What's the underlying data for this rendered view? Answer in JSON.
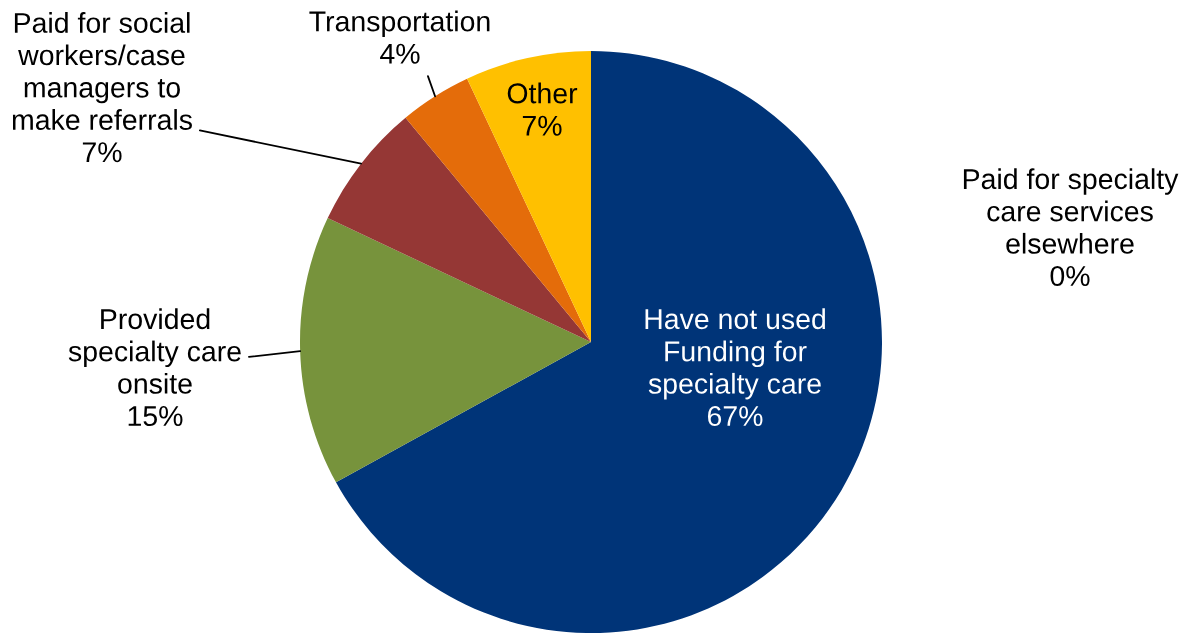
{
  "chart_data": {
    "type": "pie",
    "categories": [
      "Paid for specialty\ncare services\nelsewhere",
      "Have not used\nFunding for\nspecialty care",
      "Provided\nspecialty care\nonsite",
      "Paid for social\nworkers/case\nmanagers to\nmake referrals",
      "Transportation",
      "Other"
    ],
    "values": [
      0,
      67,
      15,
      7,
      4,
      7
    ],
    "value_labels": [
      "0%",
      "67%",
      "15%",
      "7%",
      "4%",
      "7%"
    ],
    "colors": [
      null,
      "#003478",
      "#77933c",
      "#953735",
      "#e46c0a",
      "#ffc000"
    ]
  }
}
